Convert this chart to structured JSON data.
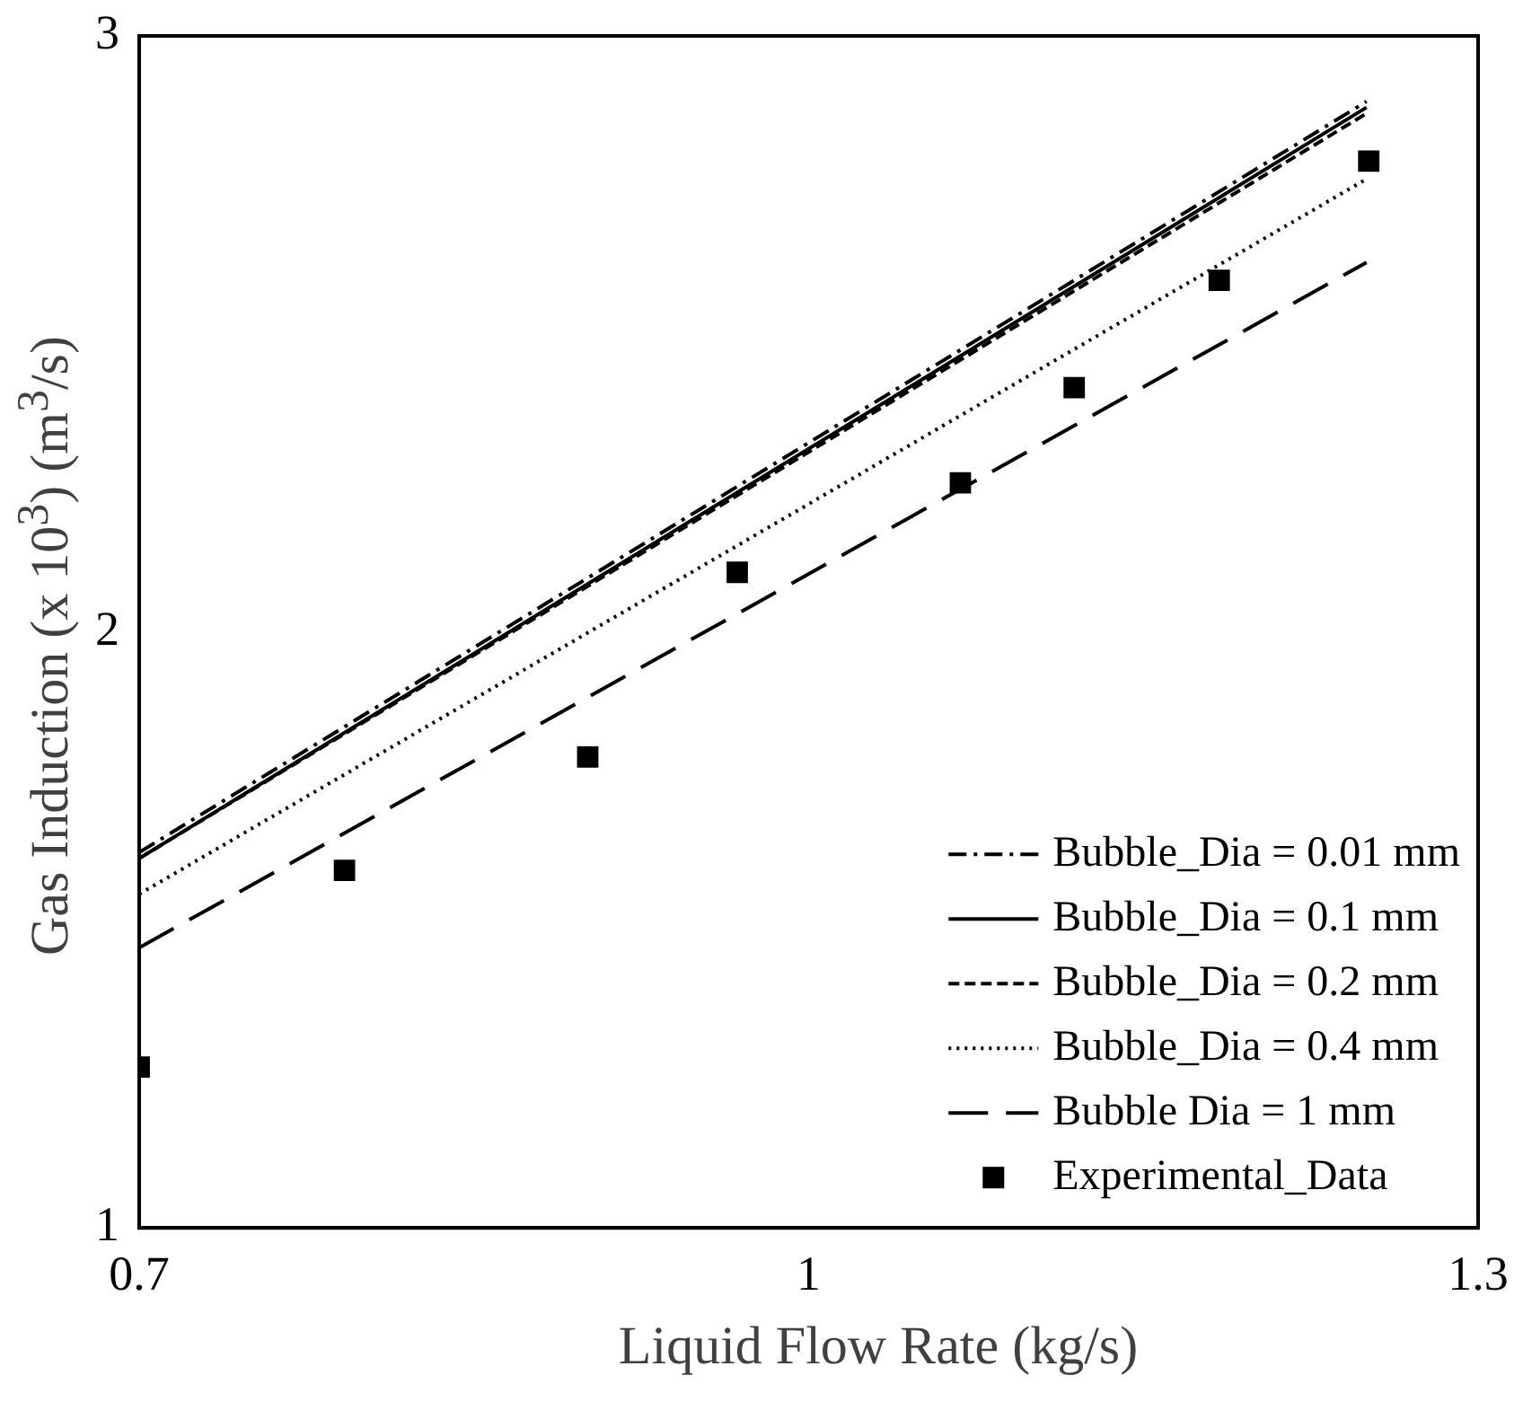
{
  "chart_data": {
    "type": "line",
    "xlabel": "Liquid Flow Rate (kg/s)",
    "ylabel": "Gas Induction (x 10$^{3}$) (m$^{3}$/s)",
    "xlim": [
      0.7,
      1.3
    ],
    "xticks": [
      0.7,
      1,
      1.3
    ],
    "ylim": [
      1,
      3
    ],
    "yticks": [
      1,
      2,
      3
    ],
    "grid": false,
    "legend": "bottom right",
    "series": [
      {
        "name": "Bubble_Dia = 0.01 mm",
        "color": "#000000",
        "line_style": "dashdot",
        "marker": "none",
        "x": [
          0.7,
          1.25
        ],
        "values": [
          1.63,
          2.89
        ]
      },
      {
        "name": "Bubble_Dia = 0.1 mm",
        "color": "#000000",
        "line_style": "solid",
        "marker": "none",
        "x": [
          0.7,
          1.25
        ],
        "values": [
          1.62,
          2.88
        ]
      },
      {
        "name": "Bubble_Dia = 0.2 mm",
        "color": "#000000",
        "line_style": "dashed",
        "marker": "none",
        "x": [
          0.7,
          1.25
        ],
        "values": [
          1.62,
          2.87
        ]
      },
      {
        "name": "Bubble_Dia = 0.4 mm",
        "color": "#000000",
        "line_style": "dotted",
        "marker": "none",
        "x": [
          0.7,
          1.25
        ],
        "values": [
          1.56,
          2.76
        ]
      },
      {
        "name": "Bubble Dia = 1 mm",
        "color": "#000000",
        "line_style": "longdash",
        "marker": "none",
        "x": [
          0.7,
          1.25
        ],
        "values": [
          1.47,
          2.62
        ]
      },
      {
        "name": "Experimental_Data",
        "type": "scatter",
        "color": "#000000",
        "marker": "square",
        "x": [
          0.7,
          0.792,
          0.901,
          0.968,
          1.068,
          1.119,
          1.184,
          1.251
        ],
        "values": [
          1.27,
          1.6,
          1.79,
          2.1,
          2.25,
          2.41,
          2.59,
          2.79
        ]
      }
    ]
  }
}
